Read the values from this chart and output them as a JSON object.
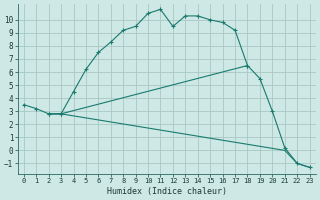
{
  "xlabel": "Humidex (Indice chaleur)",
  "ylabel": "",
  "background_color": "#cde8e5",
  "grid_color": "#a8c8c4",
  "line_color": "#1a7a6e",
  "xlim": [
    -0.5,
    23.5
  ],
  "ylim": [
    -1.8,
    11.2
  ],
  "xticks": [
    0,
    1,
    2,
    3,
    4,
    5,
    6,
    7,
    8,
    9,
    10,
    11,
    12,
    13,
    14,
    15,
    16,
    17,
    18,
    19,
    20,
    21,
    22,
    23
  ],
  "yticks": [
    -1,
    0,
    1,
    2,
    3,
    4,
    5,
    6,
    7,
    8,
    9,
    10
  ],
  "line1_x": [
    0,
    1,
    2,
    3,
    4,
    5,
    6,
    7,
    8,
    9,
    10,
    11,
    12,
    13,
    14,
    15,
    16,
    17,
    18
  ],
  "line1_y": [
    3.5,
    3.2,
    2.8,
    2.8,
    4.5,
    6.2,
    7.5,
    8.3,
    9.2,
    9.5,
    10.5,
    10.8,
    9.5,
    10.3,
    10.3,
    10.0,
    9.8,
    9.2,
    6.5
  ],
  "line2_x": [
    2,
    3,
    18,
    19,
    20,
    21,
    22,
    23
  ],
  "line2_y": [
    2.8,
    2.8,
    6.5,
    5.5,
    3.0,
    0.2,
    -1.0,
    -1.3
  ],
  "line3_x": [
    2,
    3,
    21,
    22,
    23
  ],
  "line3_y": [
    2.8,
    2.8,
    0.0,
    -1.0,
    -1.3
  ]
}
